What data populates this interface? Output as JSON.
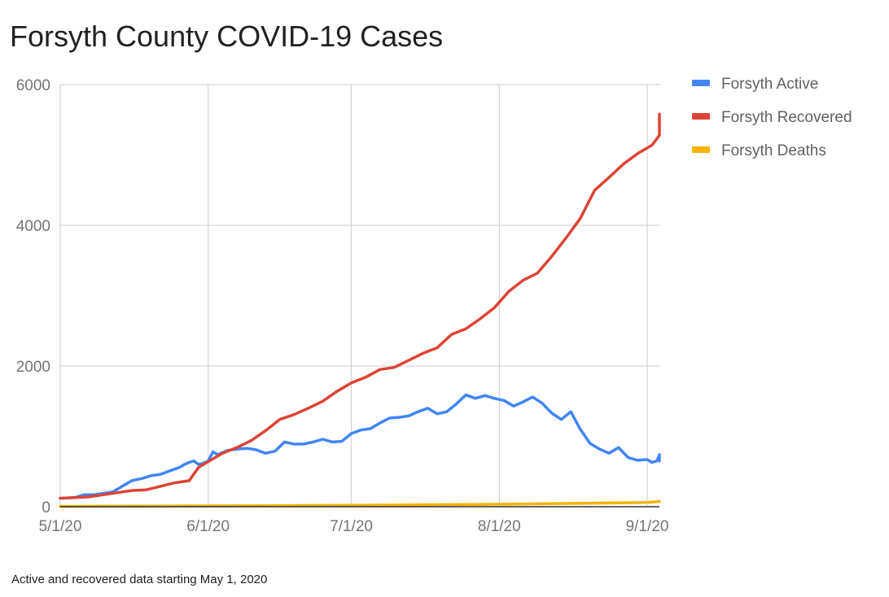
{
  "chart_data": {
    "type": "line",
    "title": "Forsyth County COVID-19 Cases",
    "xlabel": "",
    "ylabel": "",
    "x_start": "2020-05-01",
    "x_end": "2020-09-06",
    "x_ticks": [
      {
        "label": "5/1/20",
        "date": "2020-05-01"
      },
      {
        "label": "6/1/20",
        "date": "2020-06-01"
      },
      {
        "label": "7/1/20",
        "date": "2020-07-01"
      },
      {
        "label": "8/1/20",
        "date": "2020-08-01"
      },
      {
        "label": "9/1/20",
        "date": "2020-09-01"
      }
    ],
    "ylim": [
      0,
      6000
    ],
    "y_ticks": [
      {
        "label": "0",
        "value": 0
      },
      {
        "label": "2000",
        "value": 2000
      },
      {
        "label": "4000",
        "value": 4000
      },
      {
        "label": "6000",
        "value": 6000
      }
    ],
    "grid": true,
    "legend_position": "right",
    "series": [
      {
        "name": "Forsyth Active",
        "color": "#4285f4",
        "points": [
          [
            "2020-05-01",
            120
          ],
          [
            "2020-05-04",
            130
          ],
          [
            "2020-05-06",
            170
          ],
          [
            "2020-05-08",
            170
          ],
          [
            "2020-05-10",
            190
          ],
          [
            "2020-05-12",
            210
          ],
          [
            "2020-05-14",
            290
          ],
          [
            "2020-05-16",
            370
          ],
          [
            "2020-05-18",
            400
          ],
          [
            "2020-05-20",
            440
          ],
          [
            "2020-05-22",
            460
          ],
          [
            "2020-05-24",
            510
          ],
          [
            "2020-05-26",
            560
          ],
          [
            "2020-05-27",
            600
          ],
          [
            "2020-05-28",
            630
          ],
          [
            "2020-05-29",
            650
          ],
          [
            "2020-05-30",
            600
          ],
          [
            "2020-05-31",
            620
          ],
          [
            "2020-06-01",
            650
          ],
          [
            "2020-06-02",
            780
          ],
          [
            "2020-06-03",
            740
          ],
          [
            "2020-06-05",
            800
          ],
          [
            "2020-06-07",
            820
          ],
          [
            "2020-06-09",
            830
          ],
          [
            "2020-06-11",
            810
          ],
          [
            "2020-06-13",
            760
          ],
          [
            "2020-06-15",
            790
          ],
          [
            "2020-06-17",
            920
          ],
          [
            "2020-06-19",
            890
          ],
          [
            "2020-06-21",
            890
          ],
          [
            "2020-06-23",
            920
          ],
          [
            "2020-06-25",
            960
          ],
          [
            "2020-06-27",
            920
          ],
          [
            "2020-06-29",
            930
          ],
          [
            "2020-07-01",
            1040
          ],
          [
            "2020-07-03",
            1090
          ],
          [
            "2020-07-05",
            1110
          ],
          [
            "2020-07-07",
            1190
          ],
          [
            "2020-07-09",
            1260
          ],
          [
            "2020-07-11",
            1270
          ],
          [
            "2020-07-13",
            1290
          ],
          [
            "2020-07-15",
            1350
          ],
          [
            "2020-07-17",
            1400
          ],
          [
            "2020-07-19",
            1320
          ],
          [
            "2020-07-21",
            1350
          ],
          [
            "2020-07-23",
            1460
          ],
          [
            "2020-07-25",
            1590
          ],
          [
            "2020-07-27",
            1540
          ],
          [
            "2020-07-29",
            1580
          ],
          [
            "2020-07-31",
            1540
          ],
          [
            "2020-08-02",
            1510
          ],
          [
            "2020-08-04",
            1430
          ],
          [
            "2020-08-06",
            1490
          ],
          [
            "2020-08-08",
            1560
          ],
          [
            "2020-08-10",
            1470
          ],
          [
            "2020-08-12",
            1330
          ],
          [
            "2020-08-14",
            1240
          ],
          [
            "2020-08-16",
            1350
          ],
          [
            "2020-08-18",
            1100
          ],
          [
            "2020-08-20",
            900
          ],
          [
            "2020-08-22",
            820
          ],
          [
            "2020-08-24",
            760
          ],
          [
            "2020-08-26",
            840
          ],
          [
            "2020-08-28",
            700
          ],
          [
            "2020-08-30",
            660
          ],
          [
            "2020-09-01",
            670
          ],
          [
            "2020-09-02",
            630
          ],
          [
            "2020-09-03",
            650
          ],
          [
            "2020-09-04",
            730
          ],
          [
            "2020-09-05",
            740
          ],
          [
            "2020-09-06",
            650
          ],
          [
            "2020-09-07",
            690
          ],
          [
            "2020-09-08",
            660
          ]
        ]
      },
      {
        "name": "Forsyth Recovered",
        "color": "#db4437",
        "points": [
          [
            "2020-05-01",
            120
          ],
          [
            "2020-05-04",
            130
          ],
          [
            "2020-05-07",
            140
          ],
          [
            "2020-05-10",
            170
          ],
          [
            "2020-05-13",
            200
          ],
          [
            "2020-05-16",
            230
          ],
          [
            "2020-05-19",
            240
          ],
          [
            "2020-05-22",
            290
          ],
          [
            "2020-05-25",
            340
          ],
          [
            "2020-05-28",
            370
          ],
          [
            "2020-05-30",
            560
          ],
          [
            "2020-06-01",
            640
          ],
          [
            "2020-06-04",
            760
          ],
          [
            "2020-06-07",
            840
          ],
          [
            "2020-06-10",
            940
          ],
          [
            "2020-06-13",
            1080
          ],
          [
            "2020-06-16",
            1240
          ],
          [
            "2020-06-19",
            1310
          ],
          [
            "2020-06-22",
            1400
          ],
          [
            "2020-06-25",
            1500
          ],
          [
            "2020-06-28",
            1640
          ],
          [
            "2020-07-01",
            1760
          ],
          [
            "2020-07-04",
            1840
          ],
          [
            "2020-07-07",
            1950
          ],
          [
            "2020-07-10",
            1980
          ],
          [
            "2020-07-13",
            2080
          ],
          [
            "2020-07-16",
            2180
          ],
          [
            "2020-07-19",
            2260
          ],
          [
            "2020-07-22",
            2450
          ],
          [
            "2020-07-25",
            2530
          ],
          [
            "2020-07-28",
            2670
          ],
          [
            "2020-07-31",
            2830
          ],
          [
            "2020-08-03",
            3060
          ],
          [
            "2020-08-06",
            3220
          ],
          [
            "2020-08-09",
            3320
          ],
          [
            "2020-08-12",
            3560
          ],
          [
            "2020-08-15",
            3820
          ],
          [
            "2020-08-18",
            4100
          ],
          [
            "2020-08-21",
            4500
          ],
          [
            "2020-08-24",
            4680
          ],
          [
            "2020-08-27",
            4870
          ],
          [
            "2020-08-30",
            5020
          ],
          [
            "2020-09-02",
            5140
          ],
          [
            "2020-09-05",
            5280
          ],
          [
            "2020-09-08",
            5330
          ],
          [
            "2020-09-11",
            5450
          ],
          [
            "2020-09-13",
            5580
          ]
        ]
      },
      {
        "name": "Forsyth Deaths",
        "color": "#f4b400",
        "points": [
          [
            "2020-05-01",
            5
          ],
          [
            "2020-06-01",
            12
          ],
          [
            "2020-07-01",
            20
          ],
          [
            "2020-08-01",
            35
          ],
          [
            "2020-09-01",
            60
          ],
          [
            "2020-09-08",
            75
          ]
        ]
      }
    ]
  },
  "footnote": "Active and recovered data starting May 1, 2020"
}
